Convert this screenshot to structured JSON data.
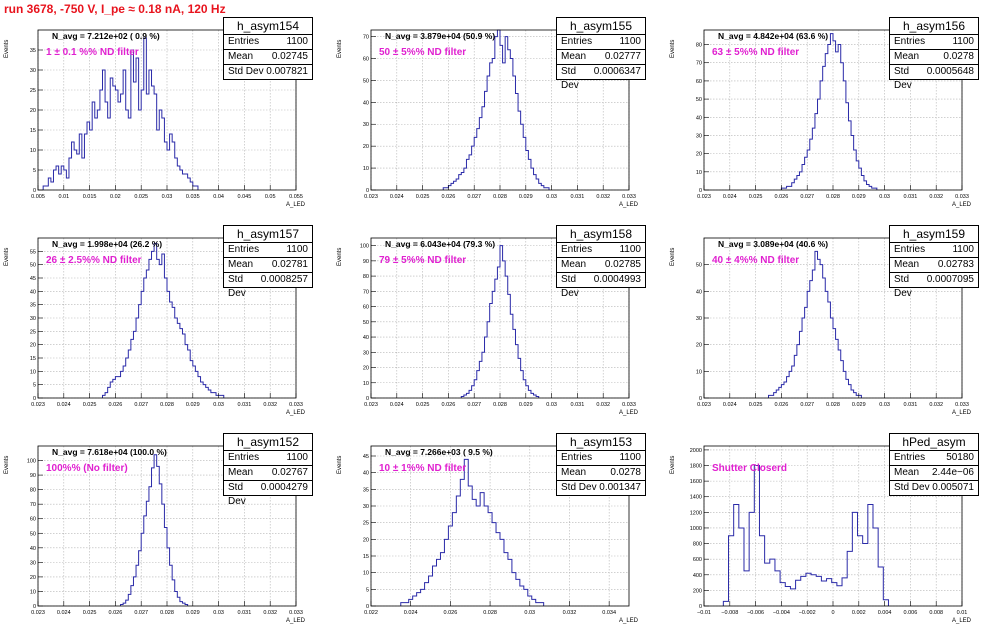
{
  "run_title": "run 3678,  -750 V, I_pe ≈ 0.18 nA, 120 Hz",
  "stats_labels": {
    "entries": "Entries",
    "mean": "Mean",
    "std": "Std Dev"
  },
  "colors": {
    "hist_line": "#2a2aa8",
    "grid": "#b4b4b4",
    "title_red": "#e8141e",
    "filter_magenta": "#e020d0"
  },
  "chart_data": [
    {
      "type": "bar",
      "name": "h_asym154",
      "navg": "N_avg = 7.212e+02 ( 0.9 %)",
      "filter": "1 ± 0.1 %% ND filter",
      "entries": "1100",
      "mean": "0.02745",
      "std": "0.007821",
      "xlim": [
        0.005,
        0.055
      ],
      "ylim": [
        0,
        40
      ],
      "xticks": [
        0.005,
        0.01,
        0.015,
        0.02,
        0.025,
        0.03,
        0.035,
        0.04,
        0.045,
        0.05,
        0.055
      ],
      "xtick_labels": [
        "0.005",
        "0.01",
        "0.015",
        "0.02",
        "0.025",
        "0.03",
        "0.035",
        "0.04",
        "0.045",
        "0.05",
        "0.055"
      ],
      "yticks": [
        0,
        5,
        10,
        15,
        20,
        25,
        30,
        35
      ],
      "xlabel": "A_LED",
      "ylabel": "Events",
      "bins": {
        "start": 0.006,
        "width": 0.0005,
        "values": [
          1,
          1,
          3,
          2,
          5,
          6,
          4,
          6,
          5,
          3,
          8,
          12,
          10,
          9,
          14,
          8,
          14,
          17,
          15,
          22,
          18,
          20,
          25,
          30,
          22,
          18,
          28,
          26,
          25,
          22,
          24,
          30,
          20,
          18,
          35,
          27,
          33,
          20,
          25,
          38,
          24,
          30,
          26,
          24,
          15,
          20,
          18,
          12,
          10,
          14,
          12,
          8,
          6,
          5,
          4,
          4,
          3,
          2,
          1,
          1
        ]
      }
    },
    {
      "type": "bar",
      "name": "h_asym155",
      "navg": "N_avg = 3.879e+04 (50.9 %)",
      "filter": "50 ± 5%% ND filter",
      "entries": "1100",
      "mean": "0.02777",
      "std": "0.0006347",
      "xlim": [
        0.023,
        0.033
      ],
      "ylim": [
        0,
        73
      ],
      "xticks": [
        0.023,
        0.024,
        0.025,
        0.026,
        0.027,
        0.028,
        0.029,
        0.03,
        0.031,
        0.032,
        0.033
      ],
      "xtick_labels": [
        "0.023",
        "0.024",
        "0.025",
        "0.026",
        "0.027",
        "0.028",
        "0.029",
        "0.03",
        "0.031",
        "0.032",
        "0.033"
      ],
      "yticks": [
        0,
        10,
        20,
        30,
        40,
        50,
        60,
        70
      ],
      "xlabel": "A_LED",
      "ylabel": "Events",
      "bins": {
        "start": 0.0258,
        "width": 0.0001,
        "values": [
          1,
          1,
          2,
          3,
          4,
          5,
          7,
          8,
          10,
          14,
          16,
          20,
          24,
          28,
          33,
          38,
          45,
          52,
          58,
          60,
          70,
          73,
          66,
          58,
          70,
          64,
          60,
          52,
          44,
          36,
          30,
          24,
          18,
          14,
          10,
          7,
          5,
          3,
          2,
          1,
          1
        ]
      }
    },
    {
      "type": "bar",
      "name": "h_asym156",
      "navg": "N_avg = 4.842e+04 (63.6 %)",
      "filter": "63 ± 5%% ND filter",
      "entries": "1100",
      "mean": "0.0278",
      "std": "0.0005648",
      "xlim": [
        0.023,
        0.033
      ],
      "ylim": [
        0,
        88
      ],
      "xticks": [
        0.023,
        0.024,
        0.025,
        0.026,
        0.027,
        0.028,
        0.029,
        0.03,
        0.031,
        0.032,
        0.033
      ],
      "xtick_labels": [
        "0.023",
        "0.024",
        "0.025",
        "0.026",
        "0.027",
        "0.028",
        "0.029",
        "0.03",
        "0.031",
        "0.032",
        "0.033"
      ],
      "yticks": [
        0,
        10,
        20,
        30,
        40,
        50,
        60,
        70,
        80
      ],
      "xlabel": "A_LED",
      "ylabel": "Events",
      "bins": {
        "start": 0.026,
        "width": 0.0001,
        "values": [
          1,
          1,
          2,
          2,
          4,
          6,
          8,
          10,
          14,
          18,
          22,
          28,
          34,
          42,
          50,
          60,
          68,
          75,
          80,
          86,
          82,
          76,
          80,
          70,
          60,
          48,
          38,
          30,
          22,
          16,
          12,
          8,
          5,
          3,
          2,
          1,
          1
        ]
      }
    },
    {
      "type": "bar",
      "name": "h_asym157",
      "navg": "N_avg = 1.998e+04 (26.2 %)",
      "filter": "26 ± 2.5%% ND filter",
      "entries": "1100",
      "mean": "0.02781",
      "std": "0.0008257",
      "xlim": [
        0.023,
        0.033
      ],
      "ylim": [
        0,
        60
      ],
      "xticks": [
        0.023,
        0.024,
        0.025,
        0.026,
        0.027,
        0.028,
        0.029,
        0.03,
        0.031,
        0.032,
        0.033
      ],
      "xtick_labels": [
        "0.023",
        "0.024",
        "0.025",
        "0.026",
        "0.027",
        "0.028",
        "0.029",
        "0.03",
        "0.031",
        "0.032",
        "0.033"
      ],
      "yticks": [
        0,
        5,
        10,
        15,
        20,
        25,
        30,
        35,
        40,
        45,
        50,
        55
      ],
      "xlabel": "A_LED",
      "ylabel": "Events",
      "bins": {
        "start": 0.0255,
        "width": 0.0001,
        "values": [
          1,
          2,
          4,
          6,
          7,
          8,
          8,
          10,
          12,
          15,
          18,
          22,
          25,
          30,
          35,
          40,
          45,
          48,
          52,
          55,
          58,
          52,
          50,
          54,
          45,
          40,
          36,
          34,
          30,
          28,
          26,
          24,
          20,
          18,
          14,
          12,
          10,
          8,
          6,
          5,
          4,
          3,
          2,
          2,
          1,
          1,
          1
        ]
      }
    },
    {
      "type": "bar",
      "name": "h_asym158",
      "navg": "N_avg = 6.043e+04 (79.3 %)",
      "filter": "79 ± 5%% ND filter",
      "entries": "1100",
      "mean": "0.02785",
      "std": "0.0004993",
      "xlim": [
        0.023,
        0.033
      ],
      "ylim": [
        0,
        105
      ],
      "xticks": [
        0.023,
        0.024,
        0.025,
        0.026,
        0.027,
        0.028,
        0.029,
        0.03,
        0.031,
        0.032,
        0.033
      ],
      "xtick_labels": [
        "0.023",
        "0.024",
        "0.025",
        "0.026",
        "0.027",
        "0.028",
        "0.029",
        "0.03",
        "0.031",
        "0.032",
        "0.033"
      ],
      "yticks": [
        0,
        10,
        20,
        30,
        40,
        50,
        60,
        70,
        80,
        90,
        100
      ],
      "xlabel": "A_LED",
      "ylabel": "Events",
      "bins": {
        "start": 0.0265,
        "width": 0.0001,
        "values": [
          1,
          2,
          3,
          5,
          8,
          12,
          18,
          24,
          30,
          40,
          50,
          62,
          70,
          78,
          86,
          100,
          90,
          80,
          68,
          55,
          45,
          35,
          26,
          18,
          12,
          8,
          5,
          3,
          2,
          1
        ]
      }
    },
    {
      "type": "bar",
      "name": "h_asym159",
      "navg": "N_avg = 3.089e+04 (40.6 %)",
      "filter": "40 ± 4%% ND filter",
      "entries": "1100",
      "mean": "0.02783",
      "std": "0.0007095",
      "xlim": [
        0.023,
        0.033
      ],
      "ylim": [
        0,
        60
      ],
      "xticks": [
        0.023,
        0.024,
        0.025,
        0.026,
        0.027,
        0.028,
        0.029,
        0.03,
        0.031,
        0.032,
        0.033
      ],
      "xtick_labels": [
        "0.023",
        "0.024",
        "0.025",
        "0.026",
        "0.027",
        "0.028",
        "0.029",
        "0.03",
        "0.031",
        "0.032",
        "0.033"
      ],
      "yticks": [
        0,
        10,
        20,
        30,
        40,
        50
      ],
      "xlabel": "A_LED",
      "ylabel": "Events",
      "bins": {
        "start": 0.0255,
        "width": 0.0001,
        "values": [
          1,
          1,
          2,
          3,
          4,
          5,
          6,
          8,
          10,
          12,
          16,
          20,
          25,
          30,
          34,
          40,
          44,
          48,
          55,
          52,
          50,
          45,
          40,
          36,
          30,
          26,
          22,
          18,
          14,
          10,
          7,
          5,
          3,
          2,
          1,
          1
        ]
      }
    },
    {
      "type": "bar",
      "name": "h_asym152",
      "navg": "N_avg = 7.618e+04 (100.0 %)",
      "filter": "100%% (No filter)",
      "entries": "1100",
      "mean": "0.02767",
      "std": "0.0004279",
      "xlim": [
        0.023,
        0.033
      ],
      "ylim": [
        0,
        110
      ],
      "xticks": [
        0.023,
        0.024,
        0.025,
        0.026,
        0.027,
        0.028,
        0.029,
        0.03,
        0.031,
        0.032,
        0.033
      ],
      "xtick_labels": [
        "0.023",
        "0.024",
        "0.025",
        "0.026",
        "0.027",
        "0.028",
        "0.029",
        "0.03",
        "0.031",
        "0.032",
        "0.033"
      ],
      "yticks": [
        0,
        10,
        20,
        30,
        40,
        50,
        60,
        70,
        80,
        90,
        100
      ],
      "xlabel": "A_LED",
      "ylabel": "Events",
      "bins": {
        "start": 0.0262,
        "width": 0.0001,
        "values": [
          1,
          2,
          4,
          8,
          14,
          20,
          28,
          38,
          50,
          62,
          72,
          82,
          95,
          104,
          96,
          84,
          70,
          54,
          40,
          28,
          18,
          10,
          6,
          3,
          2,
          1
        ]
      }
    },
    {
      "type": "bar",
      "name": "h_asym153",
      "navg": "N_avg = 7.266e+03 ( 9.5 %)",
      "filter": "10 ± 1%% ND filter",
      "entries": "1100",
      "mean": "0.0278",
      "std": "0.001347",
      "xlim": [
        0.022,
        0.035
      ],
      "ylim": [
        0,
        48
      ],
      "xticks": [
        0.022,
        0.024,
        0.026,
        0.028,
        0.03,
        0.032,
        0.034
      ],
      "xtick_labels": [
        "0.022",
        "0.024",
        "0.026",
        "0.028",
        "0.03",
        "0.032",
        "0.034"
      ],
      "yticks": [
        0,
        5,
        10,
        15,
        20,
        25,
        30,
        35,
        40,
        45
      ],
      "xlabel": "A_LED",
      "ylabel": "Events",
      "bins": {
        "start": 0.0235,
        "width": 0.0002,
        "values": [
          1,
          1,
          2,
          3,
          4,
          5,
          7,
          9,
          12,
          14,
          16,
          20,
          24,
          28,
          33,
          38,
          44,
          36,
          32,
          30,
          34,
          30,
          28,
          25,
          22,
          20,
          16,
          14,
          10,
          8,
          6,
          5,
          3,
          2,
          1,
          1
        ]
      }
    },
    {
      "type": "bar",
      "name": "hPed_asym",
      "navg": "",
      "filter": "Shutter Closerd",
      "entries": "50180",
      "mean": "2.44e−06",
      "std": "0.005071",
      "xlim": [
        -0.01,
        0.01
      ],
      "ylim": [
        0,
        2050
      ],
      "xticks": [
        -0.01,
        -0.008,
        -0.006,
        -0.004,
        -0.002,
        0,
        0.002,
        0.004,
        0.006,
        0.008,
        0.01
      ],
      "xtick_labels": [
        "−0.01",
        "−0.008",
        "−0.006",
        "−0.004",
        "−0.002",
        "0",
        "0.002",
        "0.004",
        "0.006",
        "0.008",
        "0.01"
      ],
      "yticks": [
        0,
        200,
        400,
        600,
        800,
        1000,
        1200,
        1400,
        1600,
        1800,
        2000
      ],
      "xlabel": "A_LED",
      "ylabel": "Events",
      "bins": {
        "start": -0.0085,
        "width": 0.0004,
        "values": [
          60,
          900,
          1300,
          1000,
          450,
          1200,
          1800,
          900,
          550,
          600,
          450,
          300,
          250,
          220,
          330,
          380,
          420,
          400,
          380,
          320,
          350,
          300,
          260,
          360,
          700,
          1200,
          900,
          800,
          1300,
          1000,
          500,
          80
        ]
      }
    }
  ]
}
